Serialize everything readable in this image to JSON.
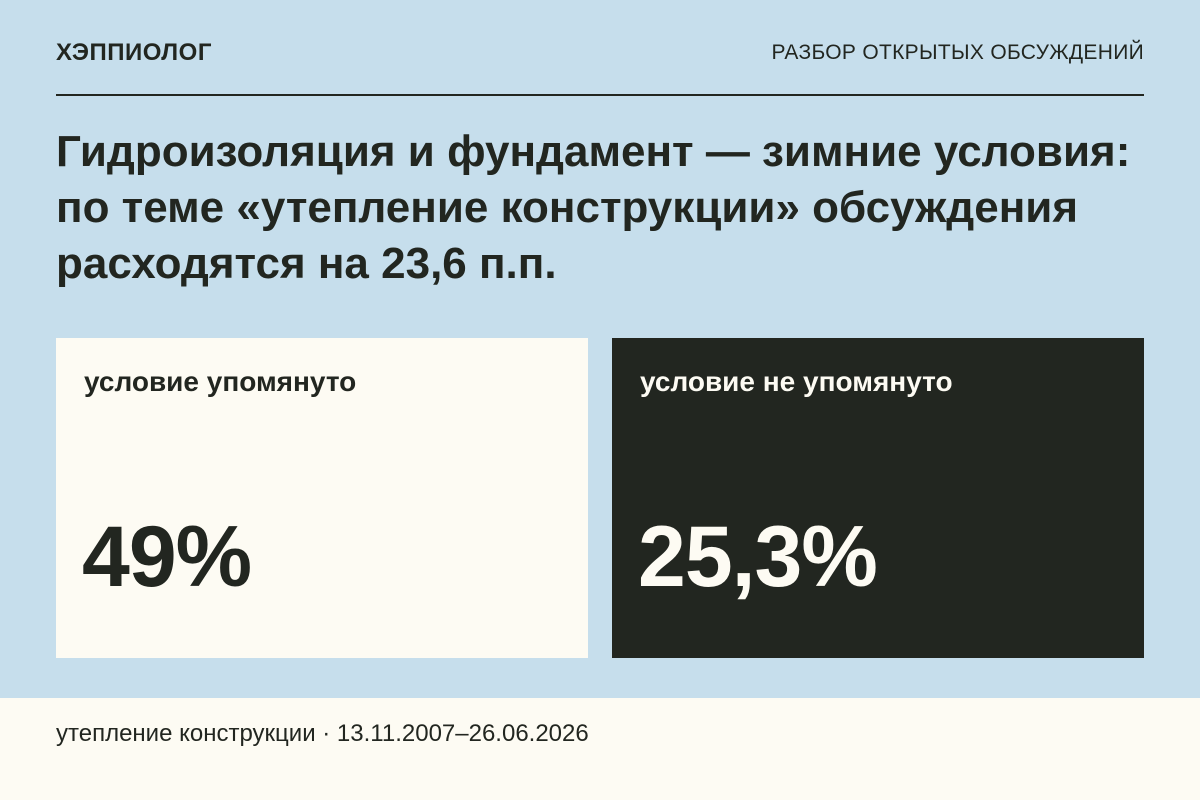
{
  "header": {
    "brand": "ХЭППИОЛОГ",
    "section": "РАЗБОР ОТКРЫТЫХ ОБСУЖДЕНИЙ"
  },
  "headline": "Гидроизоляция и фундамент — зимние условия: по теме «утепление конструкции» обсуждения расходятся на 23,6 п.п.",
  "cards": [
    {
      "label": "условие упомянуто",
      "value": "49%"
    },
    {
      "label": "условие не упомянуто",
      "value": "25,3%"
    }
  ],
  "footer": {
    "text": "утепление конструкции · 13.11.2007–26.06.2026"
  },
  "colors": {
    "background": "#c6deec",
    "light_card": "#fdfbf3",
    "dark_card": "#222620"
  }
}
